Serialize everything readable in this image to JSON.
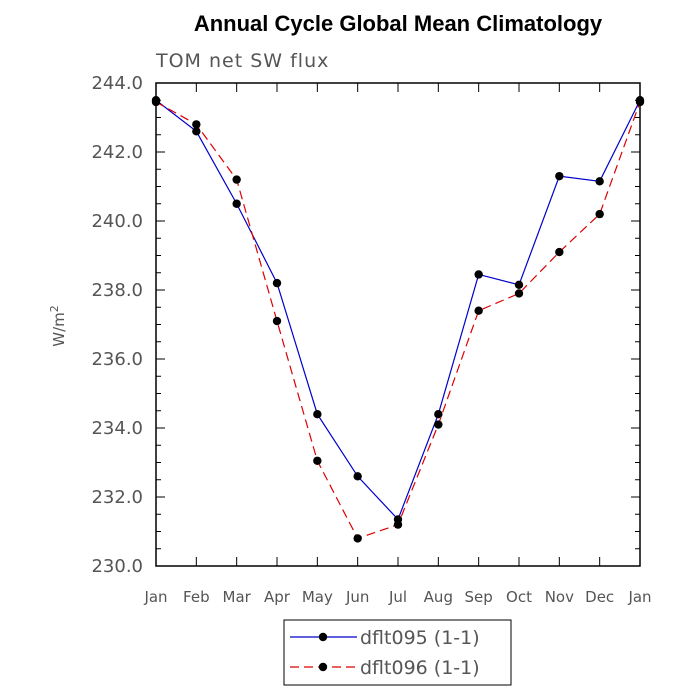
{
  "chart_data": {
    "type": "line",
    "title": "Annual Cycle Global Mean Climatology",
    "subtitle": "TOM net SW flux",
    "ylabel_base": "W/m",
    "ylabel_sup": "2",
    "xlabel": "",
    "categories": [
      "Jan",
      "Feb",
      "Mar",
      "Apr",
      "May",
      "Jun",
      "Jul",
      "Aug",
      "Sep",
      "Oct",
      "Nov",
      "Dec",
      "Jan"
    ],
    "ylim": [
      230.0,
      244.0
    ],
    "yticks": [
      "230.0",
      "232.0",
      "234.0",
      "236.0",
      "238.0",
      "240.0",
      "242.0",
      "244.0"
    ],
    "grid": false,
    "legend_position": "bottom",
    "series": [
      {
        "name": "dflt095 (1-1)",
        "color": "#0000cc",
        "style": "solid",
        "values": [
          243.5,
          242.6,
          240.5,
          238.2,
          234.4,
          232.6,
          231.35,
          234.4,
          238.45,
          238.15,
          241.3,
          241.15,
          243.5
        ]
      },
      {
        "name": "dflt096 (1-1)",
        "color": "#dd0000",
        "style": "dashed",
        "values": [
          243.45,
          242.8,
          241.2,
          237.1,
          233.05,
          230.8,
          231.2,
          234.1,
          237.4,
          237.9,
          239.1,
          240.2,
          243.45
        ]
      }
    ]
  }
}
